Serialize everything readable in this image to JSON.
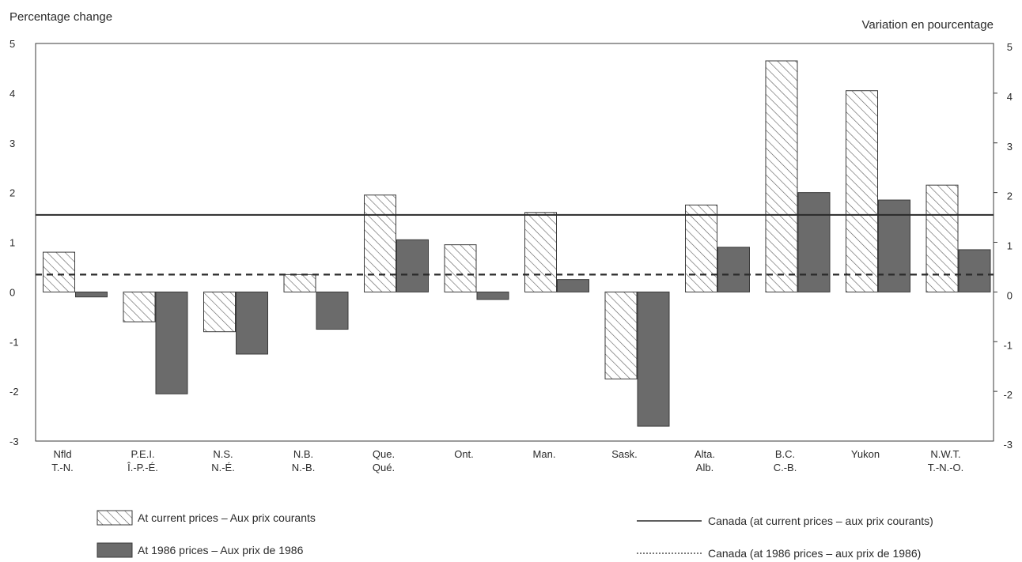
{
  "chart_data": {
    "type": "bar",
    "ylabel_left": "Percentage change",
    "ylabel_right": "Variation en pourcentage",
    "ylim": [
      -3,
      5
    ],
    "yticks": [
      "5",
      "4",
      "3",
      "2",
      "1",
      "0",
      "-1",
      "-2",
      "-3"
    ],
    "ytick_values": [
      5,
      4,
      3,
      2,
      1,
      0,
      -1,
      -2,
      -3
    ],
    "categories": [
      {
        "en": "Nfld",
        "fr": "T.-N."
      },
      {
        "en": "P.E.I.",
        "fr": "Î.-P.-É."
      },
      {
        "en": "N.S.",
        "fr": "N.-É."
      },
      {
        "en": "N.B.",
        "fr": "N.-B."
      },
      {
        "en": "Que.",
        "fr": "Qué."
      },
      {
        "en": "Ont.",
        "fr": ""
      },
      {
        "en": "Man.",
        "fr": ""
      },
      {
        "en": "Sask.",
        "fr": ""
      },
      {
        "en": "Alta.",
        "fr": "Alb."
      },
      {
        "en": "B.C.",
        "fr": "C.-B."
      },
      {
        "en": "Yukon",
        "fr": ""
      },
      {
        "en": "N.W.T.",
        "fr": "T.-N.-O."
      }
    ],
    "series": [
      {
        "name": "At current prices – Aux prix courants",
        "pattern": "hatched",
        "values": [
          0.8,
          -0.6,
          -0.8,
          0.35,
          1.95,
          0.95,
          1.6,
          -1.75,
          1.75,
          4.65,
          4.05,
          2.15
        ]
      },
      {
        "name": "At 1986 prices – Aux prix de 1986",
        "pattern": "dark",
        "values": [
          -0.1,
          -2.05,
          -1.25,
          -0.75,
          1.05,
          -0.15,
          0.25,
          -2.7,
          0.9,
          2.0,
          1.85,
          0.85
        ]
      }
    ],
    "reference_lines": [
      {
        "name": "Canada (at current prices – aux prix courants)",
        "style": "solid",
        "value": 1.55
      },
      {
        "name": "Canada (at 1986 prices – aux prix de 1986)",
        "style": "dashed",
        "value": 0.35
      }
    ],
    "legend_placement": "bottom",
    "grid": false,
    "colors": {
      "bar_dark": "#6b6b6b",
      "hatch": "#5a5a5a",
      "axis": "#3a3a3a",
      "line": "#2a2a2a"
    }
  }
}
